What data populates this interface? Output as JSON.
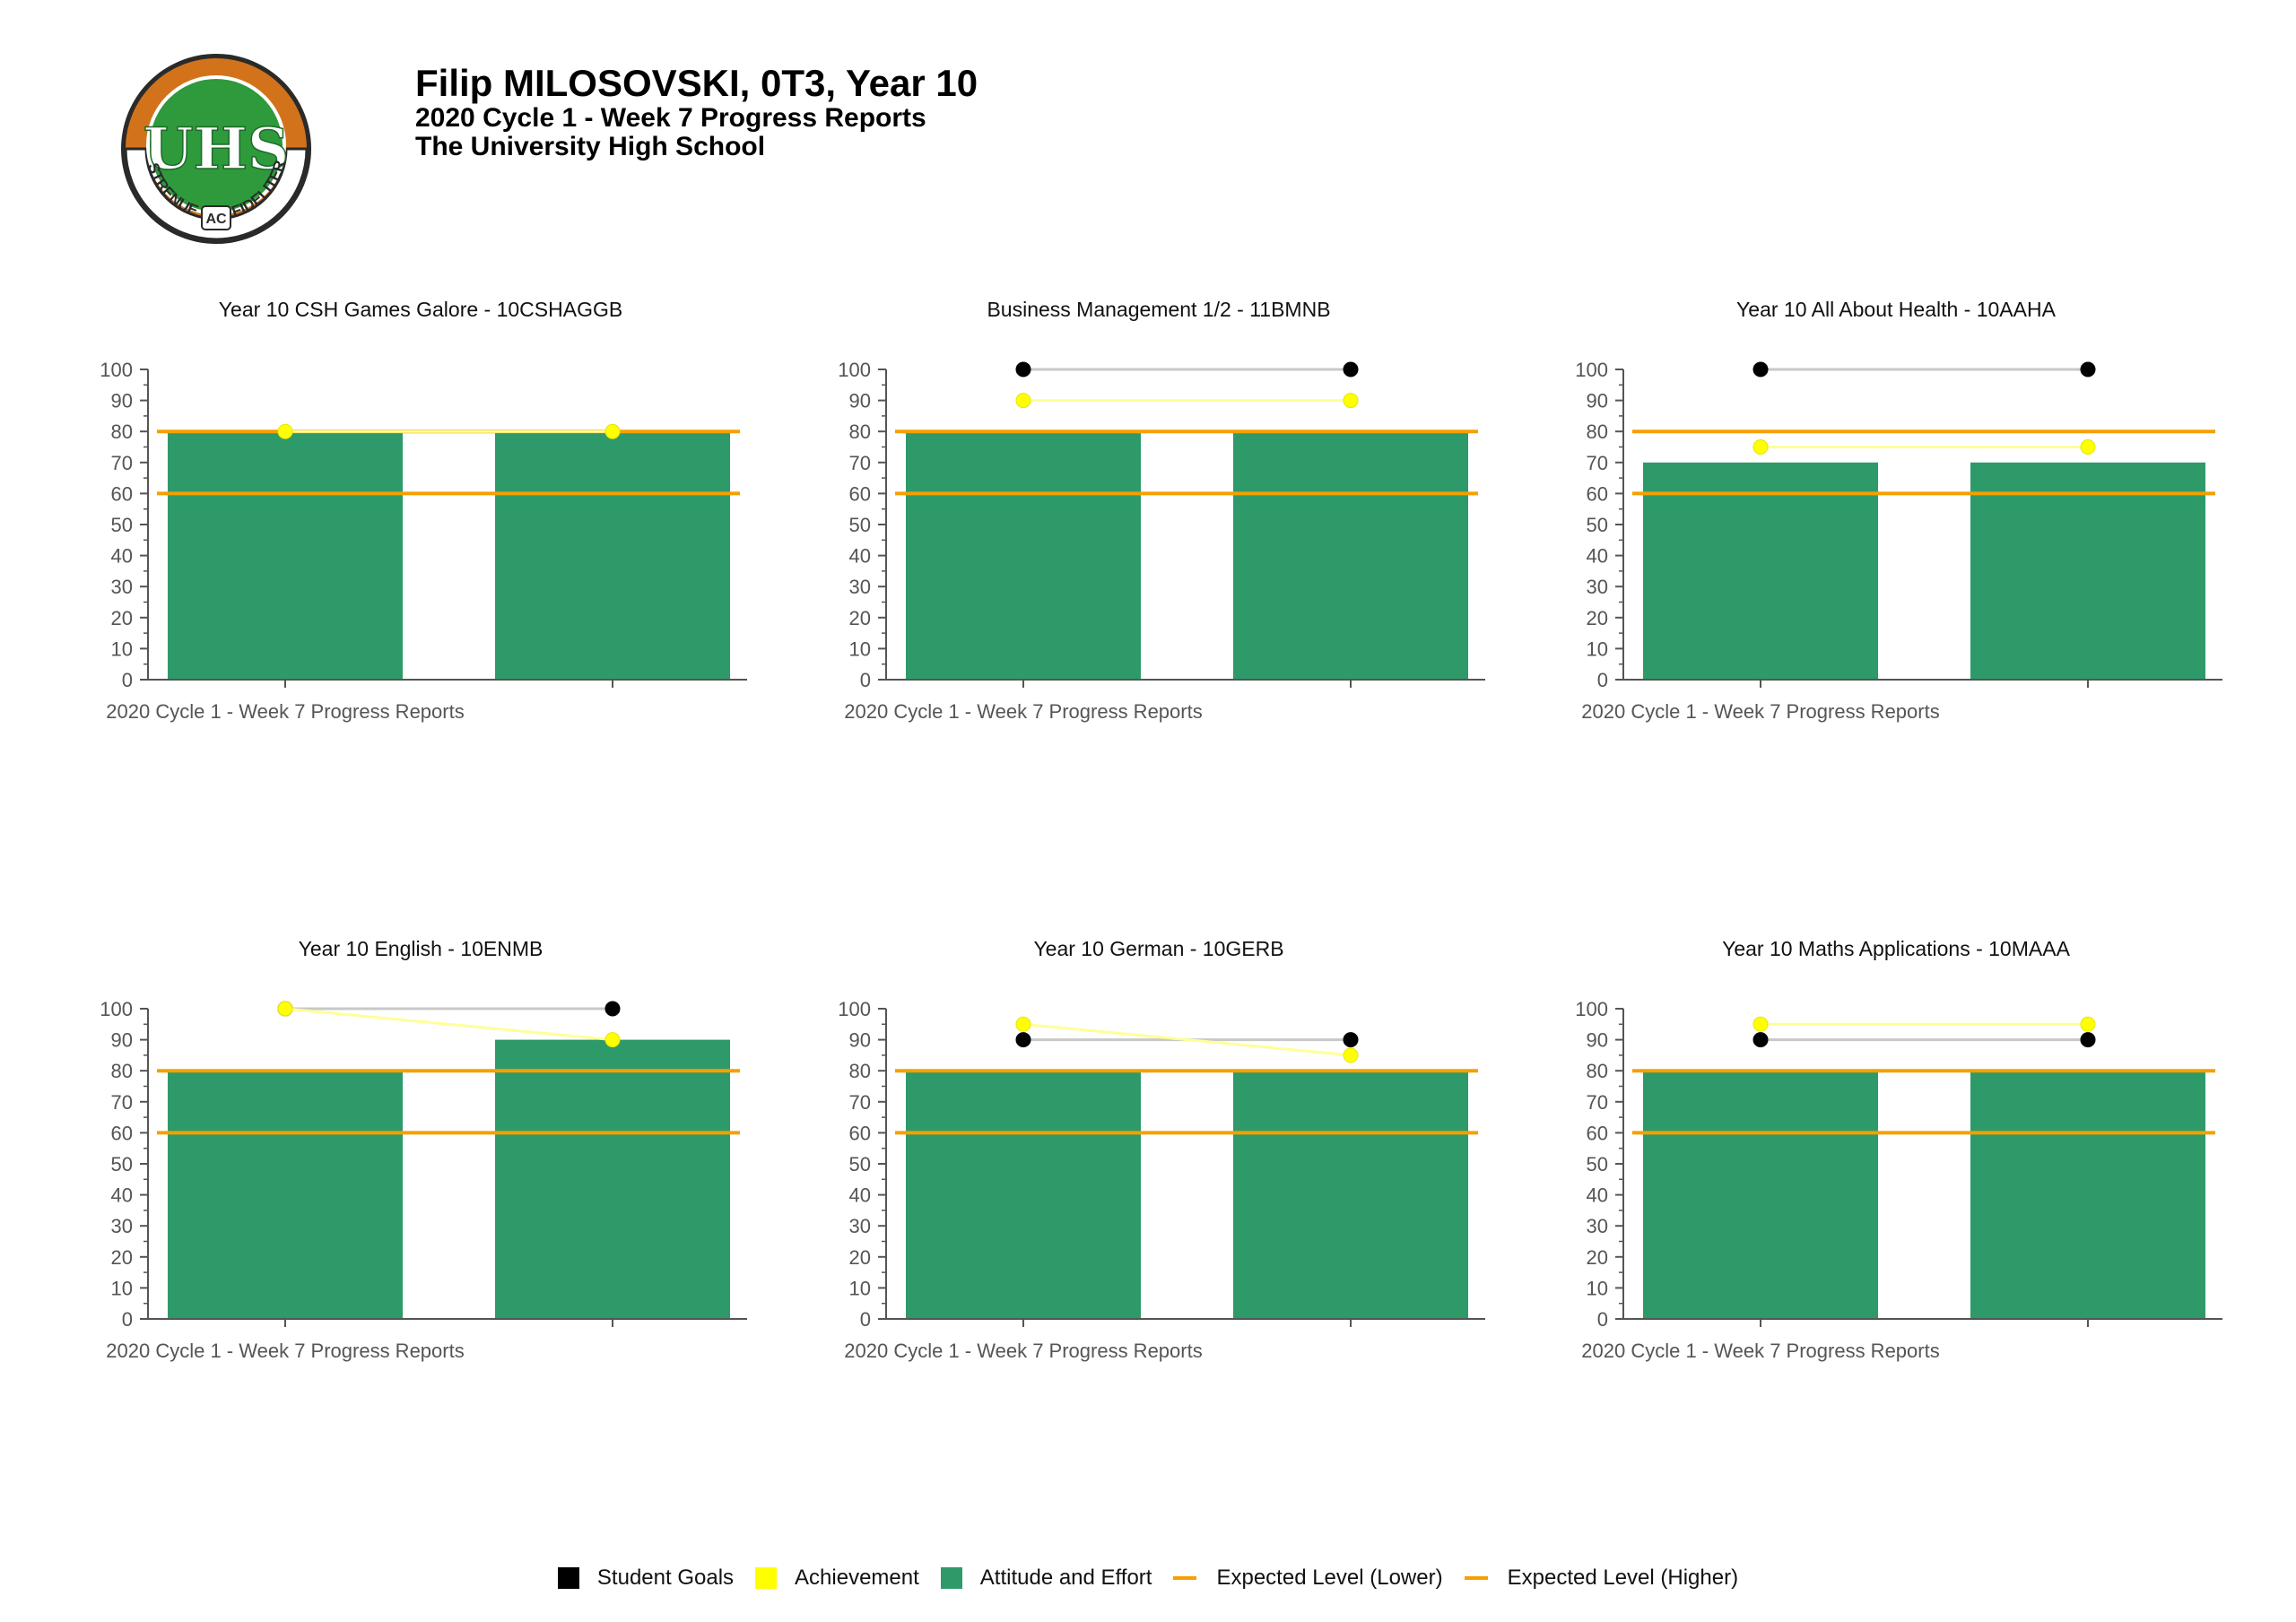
{
  "header": {
    "name": "Filip MILOSOVSKI, 0T3, Year 10",
    "report": "2020 Cycle 1 - Week 7 Progress Reports",
    "school": "The University High School"
  },
  "logo": {
    "monogram": "UHS",
    "motto_left": "STRENUE",
    "motto_mid": "AC",
    "motto_right": "FIDELITER",
    "colors": {
      "ring": "#d2731b",
      "inner": "#2e9a3c",
      "edge": "#2a2a2a"
    }
  },
  "colors": {
    "student_goals": "#000000",
    "achievement": "#ffff00",
    "attitude": "#2e9a69",
    "expected": "#f5a000",
    "goal_line": "#c8c8c8",
    "ach_line": "#ffff99",
    "axis": "#555555",
    "tick_label": "#555555"
  },
  "legend": [
    {
      "label": "Student Goals",
      "kind": "box",
      "color": "#000000"
    },
    {
      "label": "Achievement",
      "kind": "box",
      "color": "#ffff00"
    },
    {
      "label": "Attitude and Effort",
      "kind": "box",
      "color": "#2e9a69"
    },
    {
      "label": "Expected Level (Lower)",
      "kind": "line",
      "color": "#f5a000"
    },
    {
      "label": "Expected Level (Higher)",
      "kind": "line",
      "color": "#f5a000"
    }
  ],
  "chart_data": [
    {
      "type": "bar",
      "title": "Year 10 CSH Games Galore - 10CSHAGGB",
      "categories": [
        "2020 Cycle 1 - Week 7 Progress Reports",
        ""
      ],
      "ylim": [
        0,
        100
      ],
      "yticks": [
        0,
        10,
        20,
        30,
        40,
        50,
        60,
        70,
        80,
        90,
        100
      ],
      "series": [
        {
          "name": "Attitude and Effort",
          "kind": "bar",
          "values": [
            80,
            80
          ]
        },
        {
          "name": "Student Goals",
          "kind": "line",
          "values": [
            null,
            null
          ]
        },
        {
          "name": "Achievement",
          "kind": "line",
          "values": [
            80,
            80
          ]
        }
      ],
      "expected_lower": 60,
      "expected_higher": 80
    },
    {
      "type": "bar",
      "title": "Business Management 1/2 - 11BMNB",
      "categories": [
        "2020 Cycle 1 - Week 7 Progress Reports",
        ""
      ],
      "ylim": [
        0,
        100
      ],
      "yticks": [
        0,
        10,
        20,
        30,
        40,
        50,
        60,
        70,
        80,
        90,
        100
      ],
      "series": [
        {
          "name": "Attitude and Effort",
          "kind": "bar",
          "values": [
            80,
            80
          ]
        },
        {
          "name": "Student Goals",
          "kind": "line",
          "values": [
            100,
            100
          ]
        },
        {
          "name": "Achievement",
          "kind": "line",
          "values": [
            90,
            90
          ]
        }
      ],
      "expected_lower": 60,
      "expected_higher": 80
    },
    {
      "type": "bar",
      "title": "Year 10 All About Health - 10AAHA",
      "categories": [
        "2020 Cycle 1 - Week 7 Progress Reports",
        ""
      ],
      "ylim": [
        0,
        100
      ],
      "yticks": [
        0,
        10,
        20,
        30,
        40,
        50,
        60,
        70,
        80,
        90,
        100
      ],
      "series": [
        {
          "name": "Attitude and Effort",
          "kind": "bar",
          "values": [
            70,
            70
          ]
        },
        {
          "name": "Student Goals",
          "kind": "line",
          "values": [
            100,
            100
          ]
        },
        {
          "name": "Achievement",
          "kind": "line",
          "values": [
            75,
            75
          ]
        }
      ],
      "expected_lower": 60,
      "expected_higher": 80
    },
    {
      "type": "bar",
      "title": "Year 10 English - 10ENMB",
      "categories": [
        "2020 Cycle 1 - Week 7 Progress Reports",
        ""
      ],
      "ylim": [
        0,
        100
      ],
      "yticks": [
        0,
        10,
        20,
        30,
        40,
        50,
        60,
        70,
        80,
        90,
        100
      ],
      "series": [
        {
          "name": "Attitude and Effort",
          "kind": "bar",
          "values": [
            80,
            90
          ]
        },
        {
          "name": "Student Goals",
          "kind": "line",
          "values": [
            100,
            100
          ]
        },
        {
          "name": "Achievement",
          "kind": "line",
          "values": [
            100,
            90
          ]
        }
      ],
      "expected_lower": 60,
      "expected_higher": 80
    },
    {
      "type": "bar",
      "title": "Year 10 German - 10GERB",
      "categories": [
        "2020 Cycle 1 - Week 7 Progress Reports",
        ""
      ],
      "ylim": [
        0,
        100
      ],
      "yticks": [
        0,
        10,
        20,
        30,
        40,
        50,
        60,
        70,
        80,
        90,
        100
      ],
      "series": [
        {
          "name": "Attitude and Effort",
          "kind": "bar",
          "values": [
            80,
            80
          ]
        },
        {
          "name": "Student Goals",
          "kind": "line",
          "values": [
            90,
            90
          ]
        },
        {
          "name": "Achievement",
          "kind": "line",
          "values": [
            95,
            85
          ]
        }
      ],
      "expected_lower": 60,
      "expected_higher": 80
    },
    {
      "type": "bar",
      "title": "Year 10 Maths Applications - 10MAAA",
      "categories": [
        "2020 Cycle 1 - Week 7 Progress Reports",
        ""
      ],
      "ylim": [
        0,
        100
      ],
      "yticks": [
        0,
        10,
        20,
        30,
        40,
        50,
        60,
        70,
        80,
        90,
        100
      ],
      "series": [
        {
          "name": "Attitude and Effort",
          "kind": "bar",
          "values": [
            80,
            80
          ]
        },
        {
          "name": "Student Goals",
          "kind": "line",
          "values": [
            90,
            90
          ]
        },
        {
          "name": "Achievement",
          "kind": "line",
          "values": [
            95,
            95
          ]
        }
      ],
      "expected_lower": 60,
      "expected_higher": 80
    }
  ]
}
